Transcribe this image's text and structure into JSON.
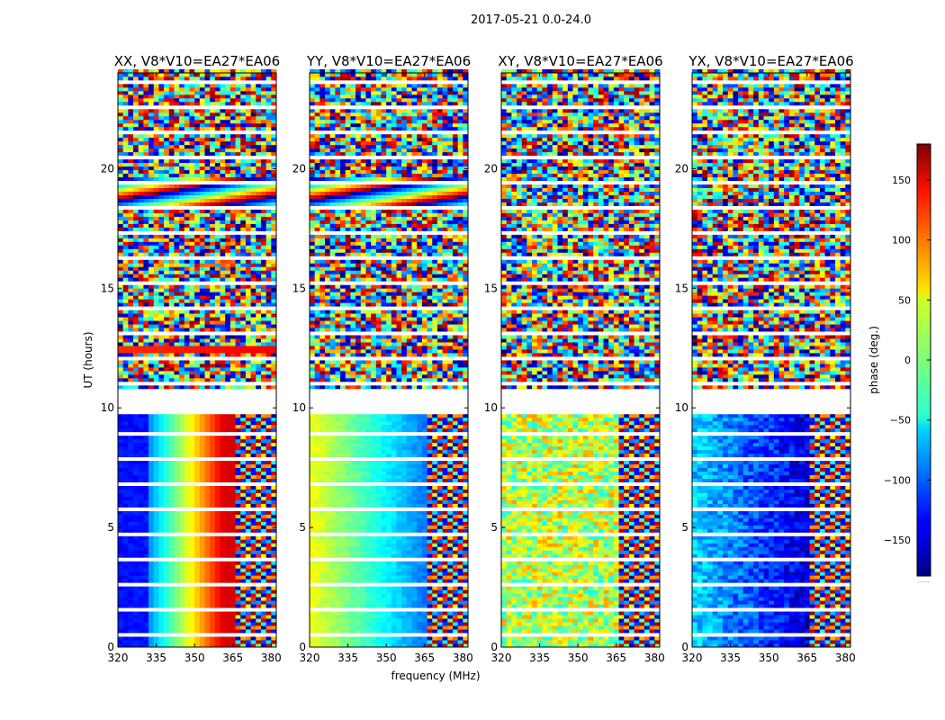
{
  "chart_data": {
    "type": "heatmap",
    "suptitle": "2017-05-21 0.0-24.0",
    "xlabel": "frequency (MHz)",
    "ylabel": "UT (hours)",
    "xlim": [
      320,
      382
    ],
    "ylim": [
      0,
      24
    ],
    "xticks": [
      320,
      335,
      350,
      365,
      380
    ],
    "yticks": [
      0,
      5,
      10,
      15,
      20
    ],
    "panels": [
      {
        "title": "XX, V8*V10=EA27*EA06"
      },
      {
        "title": "YY, V8*V10=EA27*EA06"
      },
      {
        "title": "XY, V8*V10=EA27*EA06"
      },
      {
        "title": "YX, V8*V10=EA27*EA06"
      }
    ],
    "colorbar": {
      "label": "phase (deg.)",
      "range": [
        -180,
        180
      ],
      "ticks": [
        -150,
        -100,
        -50,
        0,
        50,
        100,
        150
      ],
      "colormap": "jet",
      "extra_label": "......"
    },
    "flagged_ut_ranges": [
      [
        9.7,
        10.8
      ]
    ]
  }
}
